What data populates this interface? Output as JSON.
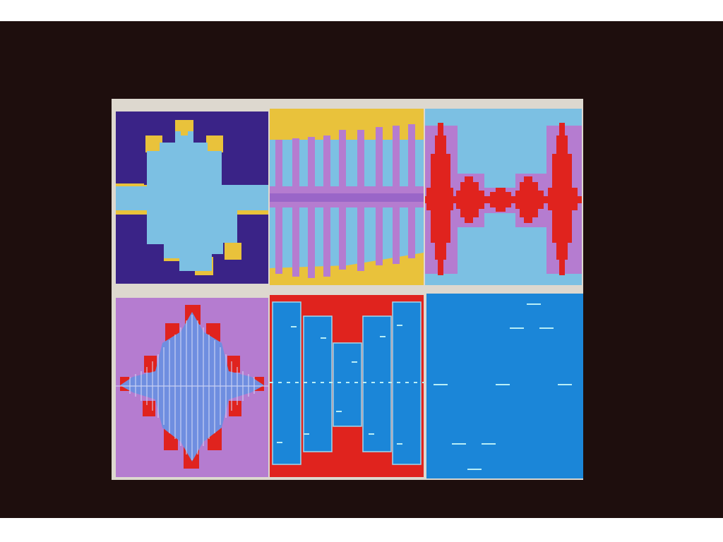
{
  "colors": {
    "screen_bg": "#1e0e0d",
    "frame": "#ddd8cf",
    "navy": "#3a2387",
    "light_blue": "#7cc0e3",
    "yellow": "#e9c23b",
    "lavender": "#b57cd0",
    "red": "#e0231e",
    "blue": "#1b86d8",
    "dash": "#b8eef7"
  },
  "panels": [
    {
      "id": "p1",
      "name": "light-blue-cross-pattern-panel"
    },
    {
      "id": "p2",
      "name": "lavender-bar-waveform-panel"
    },
    {
      "id": "p3",
      "name": "red-waveform-panel"
    },
    {
      "id": "p4",
      "name": "blue-diamond-bars-panel"
    },
    {
      "id": "p5",
      "name": "blue-columns-panel"
    },
    {
      "id": "p6",
      "name": "blue-dashes-panel"
    }
  ]
}
